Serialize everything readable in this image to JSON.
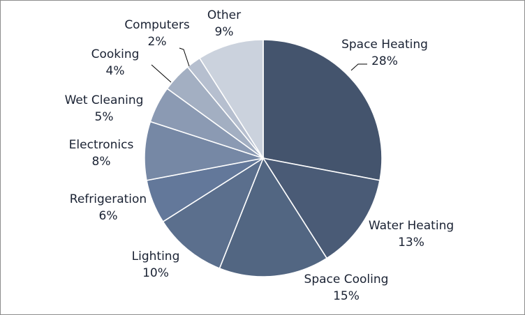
{
  "chart_data": {
    "type": "pie",
    "title": "",
    "start": "12 o'clock",
    "direction": "clockwise",
    "slices": [
      {
        "name": "Space Heating",
        "value": 28,
        "label": "28%",
        "color": "#44546d"
      },
      {
        "name": "Water Heating",
        "value": 13,
        "label": "13%",
        "color": "#4a5b76"
      },
      {
        "name": "Space Cooling",
        "value": 15,
        "label": "15%",
        "color": "#526682"
      },
      {
        "name": "Lighting",
        "value": 10,
        "label": "10%",
        "color": "#5b6f8d"
      },
      {
        "name": "Refrigeration",
        "value": 6,
        "label": "6%",
        "color": "#63789a"
      },
      {
        "name": "Electronics",
        "value": 8,
        "label": "8%",
        "color": "#7688a5"
      },
      {
        "name": "Wet Cleaning",
        "value": 5,
        "label": "5%",
        "color": "#8b9ab3"
      },
      {
        "name": "Cooking",
        "value": 4,
        "label": "4%",
        "color": "#a3afc2"
      },
      {
        "name": "Computers",
        "value": 2,
        "label": "2%",
        "color": "#b6bfcf"
      },
      {
        "name": "Other",
        "value": 9,
        "label": "9%",
        "color": "#cbd2dd"
      }
    ],
    "leader_lines": [
      "Space Heating",
      "Cooking",
      "Computers"
    ],
    "slice_border_color": "#ffffff",
    "label_color": "#1a2233"
  }
}
